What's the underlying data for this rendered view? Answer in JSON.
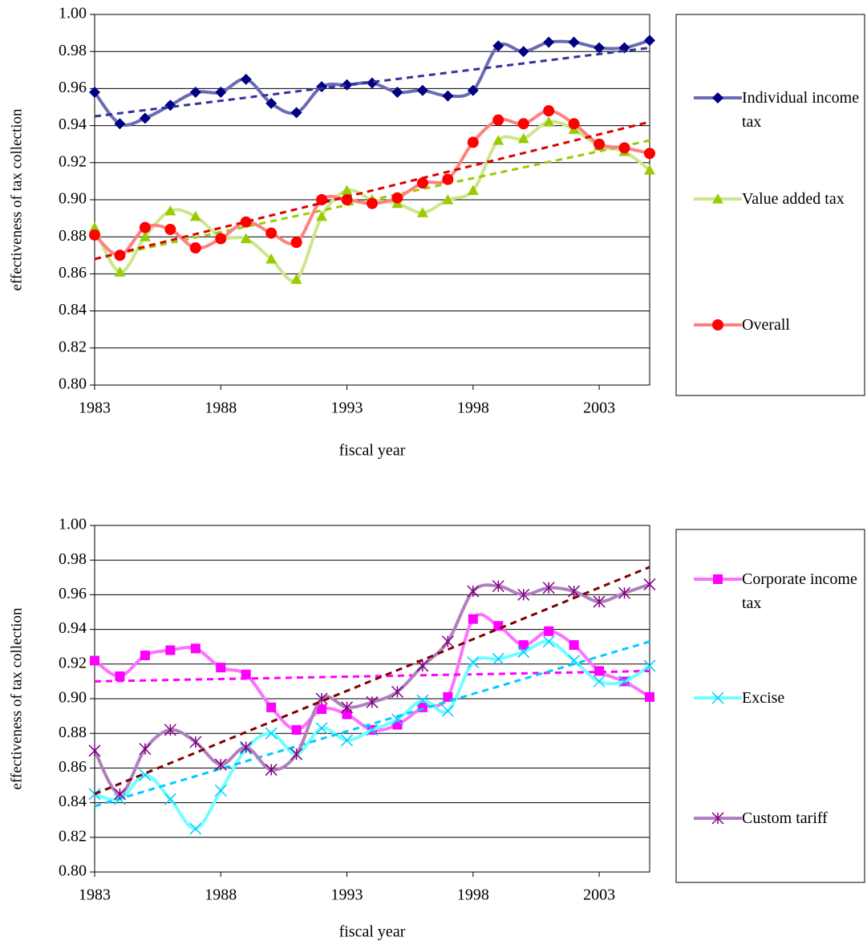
{
  "chart_data": [
    {
      "type": "line",
      "x_label": "fiscal year",
      "y_label": "effectiveness of tax collection",
      "x": [
        1983,
        1984,
        1985,
        1986,
        1987,
        1988,
        1989,
        1990,
        1991,
        1992,
        1993,
        1994,
        1995,
        1996,
        1997,
        1998,
        1999,
        2000,
        2001,
        2002,
        2003,
        2004,
        2005
      ],
      "xlim": [
        1983,
        2005
      ],
      "xticks": [
        1983,
        1988,
        1993,
        1998,
        2003
      ],
      "ylim": [
        0.8,
        1.0
      ],
      "yticks": [
        {
          "value": 0.8,
          "label": "0.80"
        },
        {
          "value": 0.82,
          "label": "0.82"
        },
        {
          "value": 0.84,
          "label": "0.84"
        },
        {
          "value": 0.86,
          "label": "0.86"
        },
        {
          "value": 0.88,
          "label": "0.88"
        },
        {
          "value": 0.9,
          "label": "0.90"
        },
        {
          "value": 0.92,
          "label": "0.92"
        },
        {
          "value": 0.94,
          "label": "0.94"
        },
        {
          "value": 0.96,
          "label": "0.96"
        },
        {
          "value": 0.98,
          "label": "0.98"
        },
        {
          "value": 1.0,
          "label": "1.00"
        }
      ],
      "grid": true,
      "series": [
        {
          "name": "Individual income tax",
          "color": "#6b6bb5",
          "marker_color": "#000080",
          "marker": "diamond",
          "trend_color": "#333399",
          "values": [
            0.958,
            0.941,
            0.944,
            0.951,
            0.958,
            0.958,
            0.965,
            0.952,
            0.947,
            0.961,
            0.962,
            0.963,
            0.958,
            0.959,
            0.956,
            0.959,
            0.983,
            0.98,
            0.985,
            0.985,
            0.982,
            0.982,
            0.986
          ],
          "trend": [
            0.945,
            0.982
          ]
        },
        {
          "name": "Value added tax",
          "color": "#cce68a",
          "marker_color": "#99cc00",
          "marker": "triangle",
          "trend_color": "#99cc00",
          "values": [
            0.885,
            0.861,
            0.88,
            0.894,
            0.891,
            0.88,
            0.879,
            0.868,
            0.857,
            0.891,
            0.905,
            0.9,
            0.898,
            0.893,
            0.9,
            0.905,
            0.932,
            0.933,
            0.942,
            0.938,
            0.929,
            0.926,
            0.916
          ],
          "trend": [
            0.868,
            0.932
          ]
        },
        {
          "name": "Overall",
          "color": "#ff8080",
          "marker_color": "#ff0000",
          "marker": "circle",
          "trend_color": "#dd0000",
          "values": [
            0.881,
            0.87,
            0.885,
            0.884,
            0.874,
            0.879,
            0.888,
            0.882,
            0.877,
            0.9,
            0.9,
            0.898,
            0.901,
            0.909,
            0.911,
            0.931,
            0.943,
            0.941,
            0.948,
            0.941,
            0.93,
            0.928,
            0.925
          ],
          "trend": [
            0.868,
            0.942
          ]
        }
      ]
    },
    {
      "type": "line",
      "x_label": "fiscal year",
      "y_label": "effectiveness of tax collection",
      "x": [
        1983,
        1984,
        1985,
        1986,
        1987,
        1988,
        1989,
        1990,
        1991,
        1992,
        1993,
        1994,
        1995,
        1996,
        1997,
        1998,
        1999,
        2000,
        2001,
        2002,
        2003,
        2004,
        2005
      ],
      "xlim": [
        1983,
        2005
      ],
      "xticks": [
        1983,
        1988,
        1993,
        1998,
        2003
      ],
      "ylim": [
        0.8,
        1.0
      ],
      "yticks": [
        {
          "value": 0.8,
          "label": "0.80"
        },
        {
          "value": 0.82,
          "label": "0.82"
        },
        {
          "value": 0.84,
          "label": "0.84"
        },
        {
          "value": 0.86,
          "label": "0.86"
        },
        {
          "value": 0.88,
          "label": "0.88"
        },
        {
          "value": 0.9,
          "label": "0.90"
        },
        {
          "value": 0.92,
          "label": "0.92"
        },
        {
          "value": 0.94,
          "label": "0.94"
        },
        {
          "value": 0.96,
          "label": "0.96"
        },
        {
          "value": 0.98,
          "label": "0.98"
        },
        {
          "value": 1.0,
          "label": "1.00"
        }
      ],
      "grid": true,
      "series": [
        {
          "name": "Corporate income tax",
          "color": "#ff70ff",
          "marker_color": "#ff00ff",
          "marker": "square",
          "trend_color": "#ff00ff",
          "values": [
            0.922,
            0.913,
            0.925,
            0.928,
            0.929,
            0.918,
            0.914,
            0.895,
            0.882,
            0.894,
            0.891,
            0.882,
            0.885,
            0.895,
            0.901,
            0.946,
            0.942,
            0.931,
            0.939,
            0.931,
            0.916,
            0.91,
            0.901
          ],
          "trend": [
            0.91,
            0.916
          ]
        },
        {
          "name": "Excise",
          "color": "#70ffff",
          "marker_color": "#00ccff",
          "marker": "x",
          "trend_color": "#00ccff",
          "values": [
            0.845,
            0.842,
            0.856,
            0.842,
            0.825,
            0.847,
            0.871,
            0.88,
            0.868,
            0.883,
            0.876,
            0.882,
            0.888,
            0.899,
            0.893,
            0.921,
            0.923,
            0.927,
            0.933,
            0.922,
            0.91,
            0.91,
            0.919
          ],
          "trend": [
            0.838,
            0.933
          ]
        },
        {
          "name": "Custom tariff",
          "color": "#b07fc0",
          "marker_color": "#800080",
          "marker": "star",
          "trend_color": "#800000",
          "values": [
            0.87,
            0.845,
            0.871,
            0.882,
            0.875,
            0.862,
            0.872,
            0.859,
            0.868,
            0.9,
            0.895,
            0.898,
            0.904,
            0.919,
            0.933,
            0.962,
            0.965,
            0.96,
            0.964,
            0.962,
            0.956,
            0.961,
            0.966
          ],
          "trend": [
            0.845,
            0.976
          ]
        }
      ]
    }
  ]
}
